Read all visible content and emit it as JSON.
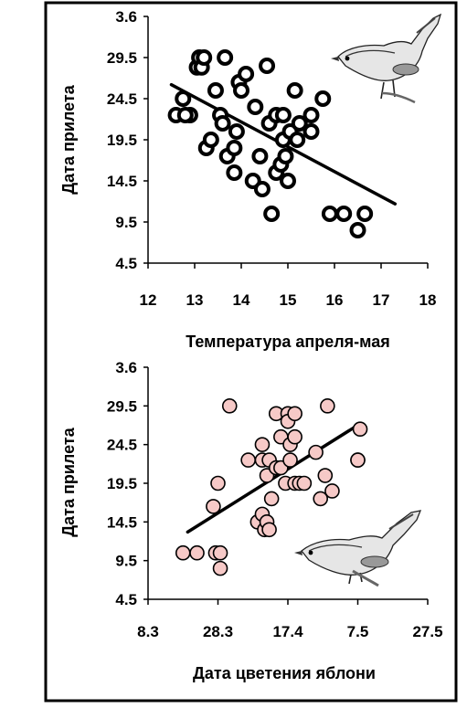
{
  "chart_data": [
    {
      "type": "scatter",
      "style": "open-circles",
      "title": "",
      "xlabel": "Температура апреля-мая",
      "ylabel": "Дата прилета",
      "xlim": [
        12,
        18
      ],
      "ylim": [
        4.5,
        34.5
      ],
      "x_ticks": [
        "12",
        "13",
        "14",
        "15",
        "16",
        "17",
        "18"
      ],
      "y_ticks": [
        "3.6",
        "29.5",
        "24.5",
        "19.5",
        "14.5",
        "9.5",
        "4.5"
      ],
      "grid": false,
      "trend": [
        [
          12.5,
          26.2
        ],
        [
          17.3,
          11.7
        ]
      ],
      "x": [
        12.6,
        12.75,
        12.9,
        12.8,
        13.05,
        13.1,
        13.15,
        13.2,
        13.25,
        13.35,
        13.45,
        13.55,
        13.6,
        13.65,
        13.7,
        13.85,
        13.85,
        13.9,
        13.95,
        14.0,
        14.1,
        14.25,
        14.3,
        14.4,
        14.45,
        14.55,
        14.6,
        14.65,
        14.75,
        14.75,
        14.85,
        14.9,
        14.9,
        14.95,
        15.0,
        15.05,
        15.15,
        15.2,
        15.25,
        15.5,
        15.5,
        15.75,
        15.9,
        16.2,
        16.5,
        16.65
      ],
      "y": [
        22.5,
        24.5,
        22.5,
        22.5,
        28.3,
        29.5,
        28.3,
        29.5,
        18.5,
        19.5,
        25.5,
        22.5,
        21.5,
        29.5,
        17.5,
        15.5,
        18.5,
        20.5,
        26.5,
        25.5,
        27.5,
        14.5,
        23.5,
        17.5,
        13.5,
        28.5,
        21.5,
        10.5,
        15.5,
        22.5,
        16.5,
        19.5,
        22.5,
        17.5,
        14.5,
        20.5,
        25.5,
        19.5,
        21.5,
        20.5,
        22.5,
        24.5,
        10.5,
        10.5,
        8.5,
        10.5
      ]
    },
    {
      "type": "scatter",
      "style": "filled-circles",
      "fill_color": "#f6c9c7",
      "title": "",
      "xlabel": "Дата цветения яблони",
      "ylabel": "Дата прилета",
      "xlim": [
        0,
        6
      ],
      "ylim": [
        4.5,
        34.5
      ],
      "x_ticks": [
        "8.3",
        "28.3",
        "17.4",
        "7.5",
        "27.5"
      ],
      "x_tick_positions": [
        0,
        1.5,
        3,
        4.5,
        6
      ],
      "y_ticks": [
        "3.6",
        "29.5",
        "24.5",
        "19.5",
        "14.5",
        "9.5",
        "4.5"
      ],
      "grid": false,
      "trend": [
        [
          0.85,
          13.2
        ],
        [
          4.55,
          27.2
        ]
      ],
      "x": [
        0.75,
        1.05,
        1.45,
        1.55,
        1.4,
        1.5,
        1.55,
        1.75,
        2.15,
        2.35,
        2.45,
        2.45,
        2.45,
        2.5,
        2.55,
        2.6,
        2.6,
        2.65,
        2.55,
        2.75,
        2.75,
        2.85,
        2.85,
        2.95,
        3.0,
        3.0,
        3.05,
        3.05,
        3.15,
        3.15,
        3.15,
        3.25,
        3.35,
        3.6,
        3.7,
        3.8,
        3.85,
        3.95,
        4.5,
        4.5,
        4.55
      ],
      "y": [
        10.5,
        10.5,
        10.5,
        10.5,
        16.5,
        19.5,
        8.5,
        29.5,
        22.5,
        14.5,
        15.5,
        22.5,
        24.5,
        13.5,
        14.5,
        22.5,
        13.5,
        17.5,
        20.5,
        21.5,
        28.5,
        21.5,
        25.5,
        19.5,
        28.5,
        27.5,
        22.5,
        24.5,
        19.5,
        25.5,
        28.5,
        19.5,
        19.5,
        23.5,
        17.5,
        20.5,
        29.5,
        18.5,
        22.5,
        22.5,
        26.5
      ]
    }
  ]
}
